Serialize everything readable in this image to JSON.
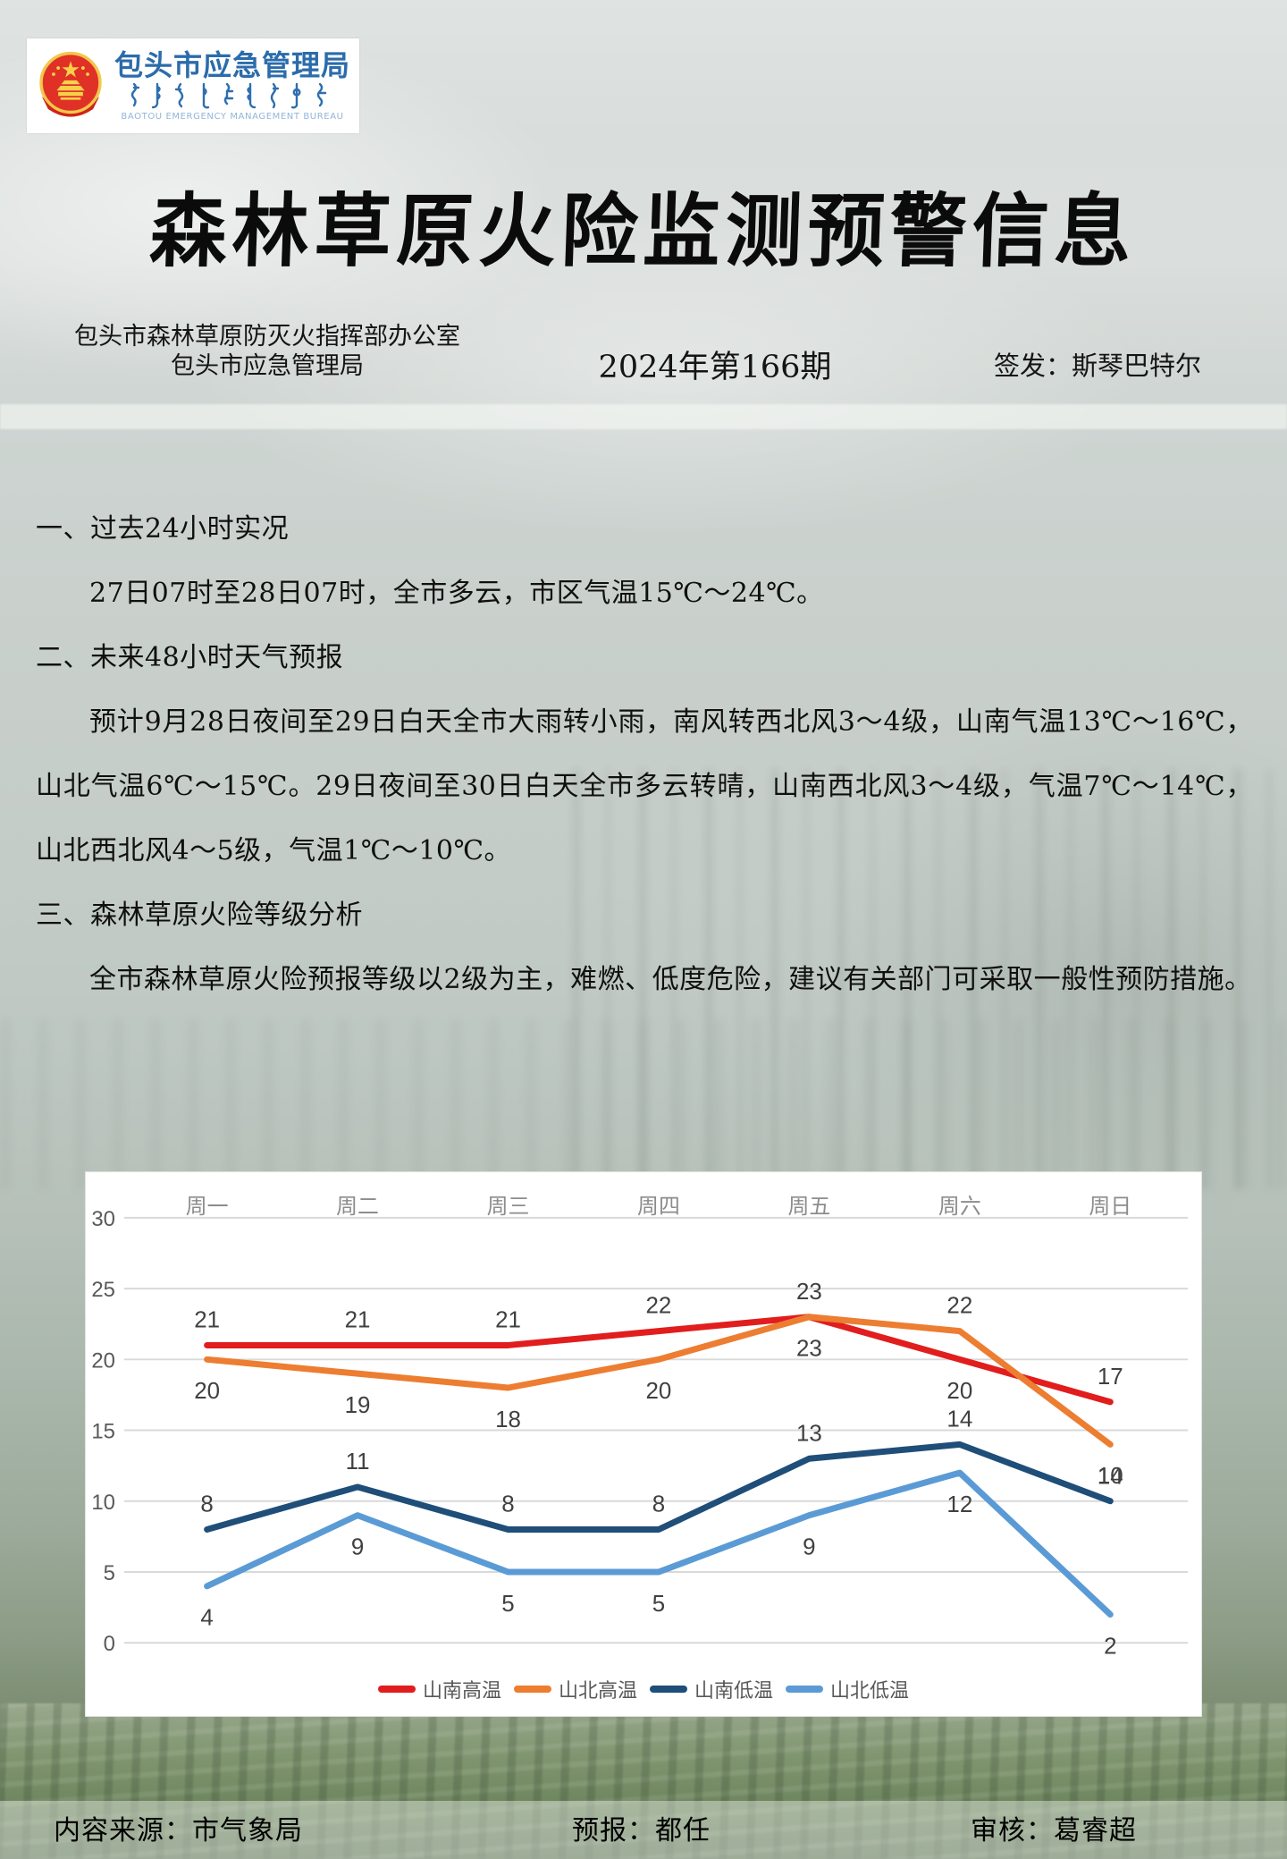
{
  "header": {
    "logo": {
      "org_cn": "包头市应急管理局",
      "org_en": "BAOTOU EMERGENCY MANAGEMENT BUREAU"
    },
    "title": "森林草原火险监测预警信息",
    "issuer_line1": "包头市森林草原防灭火指挥部办公室",
    "issuer_line2": "包头市应急管理局",
    "issue_number": "2024年第166期",
    "signer": "签发：斯琴巴特尔"
  },
  "body": {
    "section1_heading": "一、过去24小时实况",
    "section1_text": "27日07时至28日07时，全市多云，市区气温15℃～24℃。",
    "section2_heading": "二、未来48小时天气预报",
    "section2_text": "预计9月28日夜间至29日白天全市大雨转小雨，南风转西北风3～4级，山南气温13℃～16℃，山北气温6℃～15℃。29日夜间至30日白天全市多云转晴，山南西北风3～4级，气温7℃～14℃，山北西北风4～5级，气温1℃～10℃。",
    "section3_heading": "三、森林草原火险等级分析",
    "section3_text": "全市森林草原火险预报等级以2级为主，难燃、低度危险，建议有关部门可采取一般性预防措施。"
  },
  "chart_data": {
    "type": "line",
    "categories": [
      "周一",
      "周二",
      "周三",
      "周四",
      "周五",
      "周六",
      "周日"
    ],
    "series": [
      {
        "name": "山南高温",
        "color": "#e11d1d",
        "values": [
          21,
          21,
          21,
          22,
          23,
          20,
          17
        ]
      },
      {
        "name": "山北高温",
        "color": "#ed7d31",
        "values": [
          20,
          19,
          18,
          20,
          23,
          22,
          14
        ]
      },
      {
        "name": "山南低温",
        "color": "#1f4e79",
        "values": [
          8,
          11,
          8,
          8,
          13,
          14,
          10
        ]
      },
      {
        "name": "山北低温",
        "color": "#5b9bd5",
        "values": [
          4,
          9,
          5,
          5,
          9,
          12,
          2
        ]
      }
    ],
    "title": "",
    "xlabel": "",
    "ylabel": "",
    "ylim": [
      0,
      30
    ],
    "yticks": [
      0,
      5,
      10,
      15,
      20,
      25,
      30
    ],
    "grid": true,
    "category_axis_position": "top",
    "legend_position": "bottom",
    "style": {
      "grid_color": "#d9d9d9",
      "tick_label_color": "#595959",
      "category_label_color": "#8c8c8c",
      "point_label_color": "#404040",
      "panel_background": "#ffffff"
    }
  },
  "footer": {
    "source": "内容来源：市气象局",
    "forecaster": "预报：都任",
    "reviewer": "审核：葛睿超"
  }
}
